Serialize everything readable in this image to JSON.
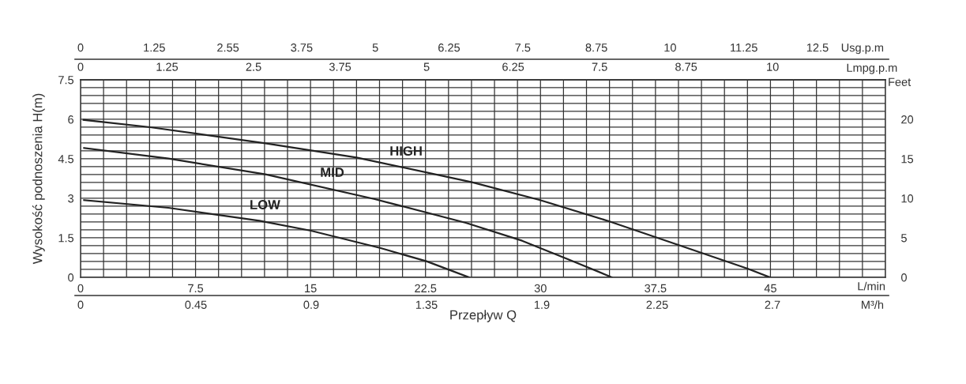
{
  "chart_data": [
    {
      "type": "line",
      "ylabel": "Wysokość podnoszenia H(m)",
      "xlabel": "L/min",
      "x2label": "Lmpg.p.m",
      "y2label": "Feet",
      "annotations": [
        "Przepływ Q"
      ],
      "grid": true,
      "legend": false,
      "marker": "none",
      "line_style": "solid",
      "xlim": [
        0,
        52.5
      ],
      "ylim": [
        0,
        7.5
      ],
      "xticks": [
        0,
        {
          "value": 1.5,
          "label": null
        },
        {
          "value": 3,
          "label": null
        },
        {
          "value": 4.5,
          "label": null
        },
        {
          "value": 6,
          "label": null
        },
        7.5,
        {
          "value": 9,
          "label": null
        },
        {
          "value": 10.5,
          "label": null
        },
        {
          "value": 12,
          "label": null
        },
        {
          "value": 13.5,
          "label": null
        },
        15,
        {
          "value": 16.5,
          "label": null
        },
        {
          "value": 18,
          "label": null
        },
        {
          "value": 19.5,
          "label": null
        },
        {
          "value": 21,
          "label": null
        },
        22.5,
        {
          "value": 24,
          "label": null
        },
        {
          "value": 25.5,
          "label": null
        },
        {
          "value": 27,
          "label": null
        },
        {
          "value": 28.5,
          "label": null
        },
        30,
        {
          "value": 31.5,
          "label": null
        },
        {
          "value": 33,
          "label": null
        },
        {
          "value": 34.5,
          "label": null
        },
        {
          "value": 36,
          "label": null
        },
        37.5,
        {
          "value": 39,
          "label": null
        },
        {
          "value": 40.5,
          "label": null
        },
        {
          "value": 42,
          "label": null
        },
        {
          "value": 43.5,
          "label": null
        },
        45,
        {
          "value": 46.5,
          "label": null
        },
        {
          "value": 48,
          "label": null
        },
        {
          "value": 49.5,
          "label": null
        },
        {
          "value": 51,
          "label": null
        },
        {
          "value": 52.5,
          "label": null
        }
      ],
      "yticks": [
        0,
        {
          "value": 0.3,
          "label": null
        },
        {
          "value": 0.6,
          "label": null
        },
        {
          "value": 0.9,
          "label": null
        },
        {
          "value": 1.2,
          "label": null
        },
        1.5,
        {
          "value": 1.8,
          "label": null
        },
        {
          "value": 2.1,
          "label": null
        },
        {
          "value": 2.4,
          "label": null
        },
        {
          "value": 2.7,
          "label": null
        },
        3,
        {
          "value": 3.3,
          "label": null
        },
        {
          "value": 3.6,
          "label": null
        },
        {
          "value": 3.9,
          "label": null
        },
        {
          "value": 4.2,
          "label": null
        },
        4.5,
        {
          "value": 4.8,
          "label": null
        },
        {
          "value": 5.1,
          "label": null
        },
        {
          "value": 5.4,
          "label": null
        },
        {
          "value": 5.7,
          "label": null
        },
        6,
        {
          "value": 6.3,
          "label": null
        },
        {
          "value": 6.6,
          "label": null
        },
        {
          "value": 6.9,
          "label": null
        },
        {
          "value": 7.2,
          "label": null
        },
        7.5
      ],
      "x2lim": [
        0,
        11.63
      ],
      "x2ticks": [
        0,
        1.25,
        2.5,
        3.75,
        5,
        6.25,
        7.5,
        8.75,
        10
      ],
      "y2lim": [
        0,
        25
      ],
      "y2ticks": [
        0,
        5,
        10,
        15,
        20
      ],
      "series": [
        {
          "name": "HIGH",
          "color": "#222222",
          "x": [
            0.19,
            4.54,
            12.06,
            18.0,
            25.53,
            29.93,
            34.46,
            38.99,
            43.51,
            44.96
          ],
          "values": [
            5.98,
            5.7,
            5.09,
            4.55,
            3.61,
            2.94,
            2.13,
            1.23,
            0.33,
            0
          ]
        },
        {
          "name": "MID",
          "color": "#222222",
          "x": [
            0.23,
            5.73,
            12.06,
            19.19,
            25.13,
            28.8,
            31.78,
            34.66
          ],
          "values": [
            4.91,
            4.51,
            3.91,
            2.97,
            2.07,
            1.39,
            0.69,
            0
          ]
        },
        {
          "name": "LOW",
          "color": "#222222",
          "x": [
            0.23,
            5.73,
            11.66,
            15.03,
            19.58,
            22.56,
            25.33
          ],
          "values": [
            2.93,
            2.64,
            2.15,
            1.77,
            1.11,
            0.61,
            0
          ]
        }
      ]
    },
    {
      "type": "other",
      "annotations": [
        "0",
        "1.25",
        "2.55",
        "3.75",
        "5",
        "6.25",
        "7.5",
        "8.75",
        "10",
        "11.25",
        "12.5",
        "Usg.p.m"
      ]
    },
    {
      "type": "other",
      "annotations": [
        "0",
        "0.45",
        "0.9",
        "1.35",
        "1.9",
        "2.25",
        "2.7",
        "M³/h"
      ]
    }
  ]
}
